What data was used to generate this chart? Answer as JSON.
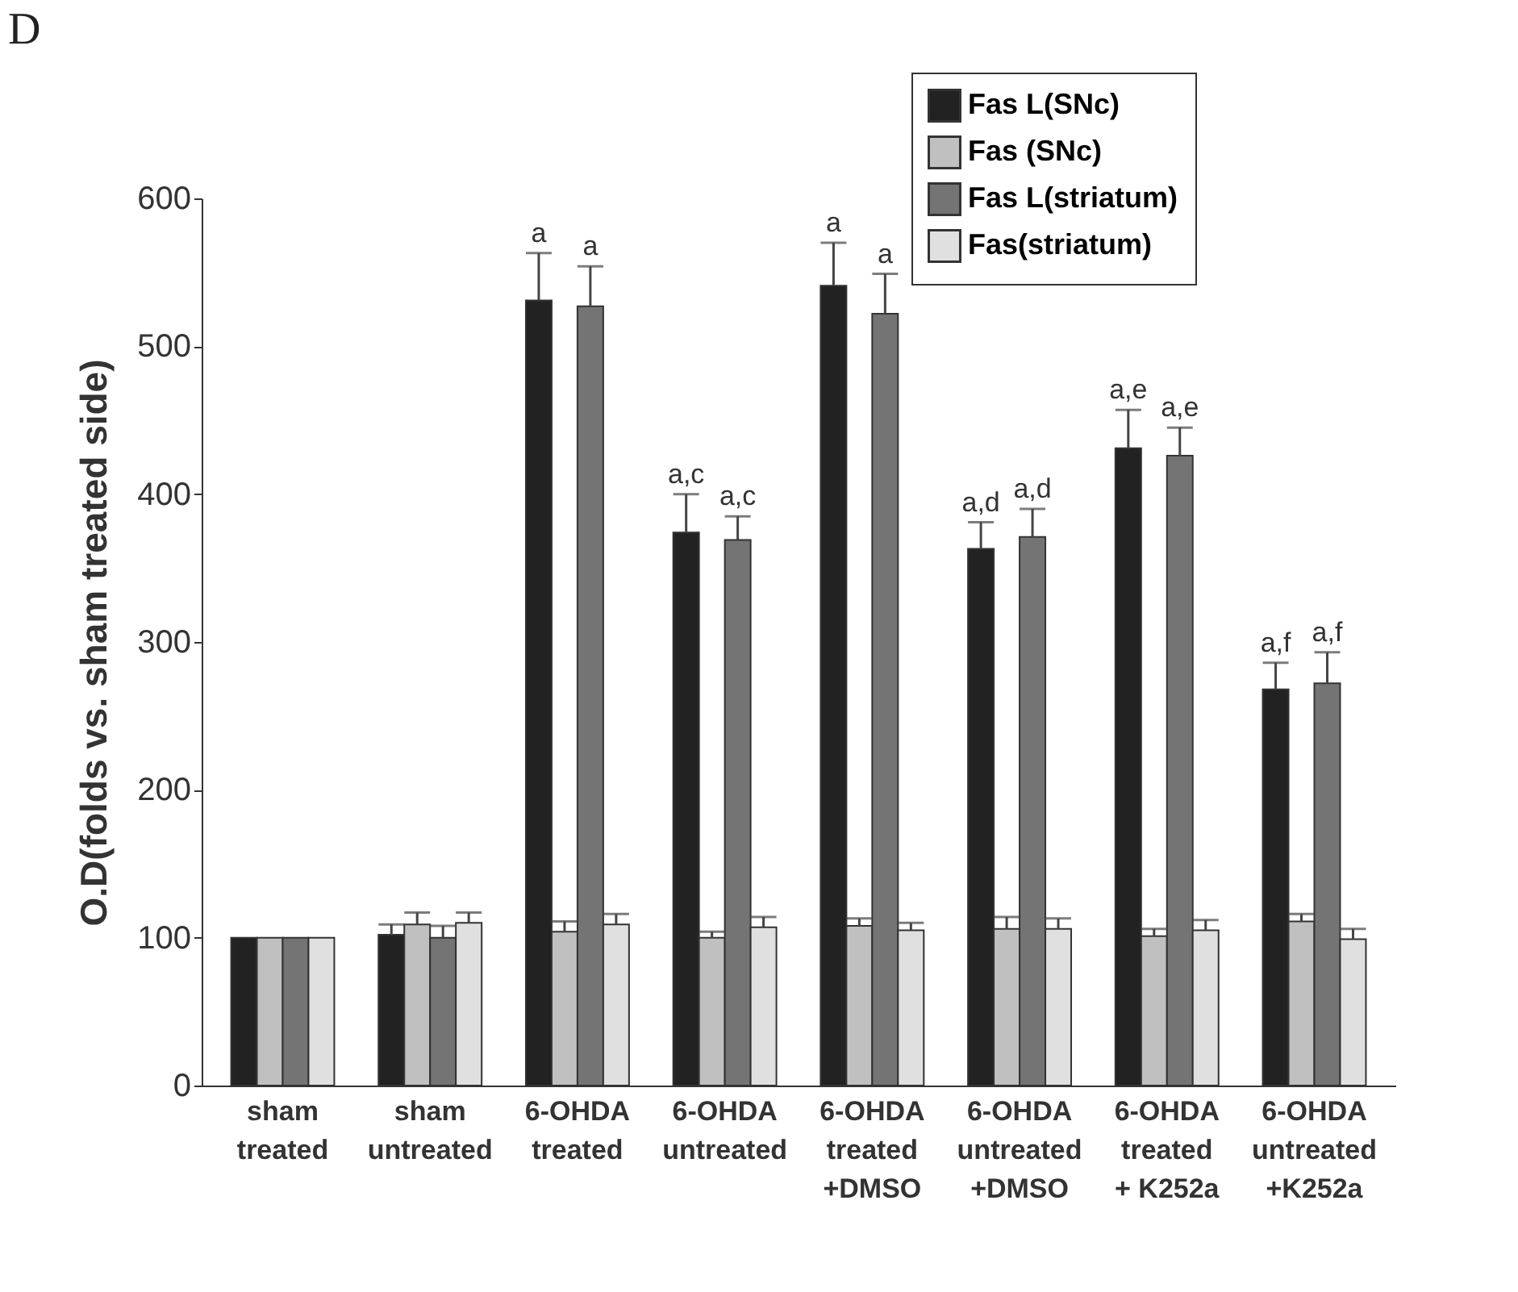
{
  "chart_data": {
    "type": "bar",
    "ylabel": "O.D(folds vs. sham treated side)",
    "annotations": [
      "D"
    ],
    "categories": [
      "sham\ntreated",
      "sham\nuntreated",
      "6-OHDA\ntreated",
      "6-OHDA\nuntreated",
      "6-OHDA\ntreated\n+DMSO",
      "6-OHDA\nuntreated\n+DMSO",
      "6-OHDA\ntreated\n+ K252a",
      "6-OHDA\nuntreated\n+K252a"
    ],
    "series": [
      {
        "name": "Fas L(SNc)",
        "color": "#222222",
        "values": [
          100,
          102,
          531,
          374,
          541,
          363,
          431,
          268
        ],
        "errors": [
          null,
          [
            102,
            109
          ],
          [
            531,
            563
          ],
          [
            374,
            400
          ],
          [
            541,
            570
          ],
          [
            363,
            381
          ],
          [
            431,
            457
          ],
          [
            268,
            286
          ]
        ],
        "value_labels": [
          null,
          null,
          "a",
          "a,c",
          "a",
          "a,d",
          "a,e",
          "a,f"
        ]
      },
      {
        "name": "Fas (SNc)",
        "color": "#c0c0c0",
        "values": [
          100,
          109,
          104,
          100,
          108,
          106,
          101,
          111
        ],
        "errors": [
          null,
          [
            109,
            117
          ],
          [
            104,
            111
          ],
          [
            100,
            104
          ],
          [
            108,
            113
          ],
          [
            106,
            114
          ],
          [
            101,
            106
          ],
          [
            111,
            116
          ]
        ]
      },
      {
        "name": "Fas L(striatum)",
        "color": "#747474",
        "values": [
          100,
          100,
          527,
          369,
          522,
          371,
          426,
          272
        ],
        "errors": [
          null,
          [
            100,
            108
          ],
          [
            527,
            554
          ],
          [
            369,
            385
          ],
          [
            522,
            549
          ],
          [
            371,
            390
          ],
          [
            426,
            445
          ],
          [
            272,
            293
          ]
        ],
        "value_labels": [
          null,
          null,
          "a",
          "a,c",
          "a",
          "a,d",
          "a,e",
          "a,f"
        ]
      },
      {
        "name": "Fas(striatum)",
        "color": "#e0e0e0",
        "values": [
          100,
          110,
          109,
          107,
          105,
          106,
          105,
          99
        ],
        "errors": [
          null,
          [
            110,
            117
          ],
          [
            109,
            116
          ],
          [
            107,
            114
          ],
          [
            105,
            110
          ],
          [
            106,
            113
          ],
          [
            105,
            112
          ],
          [
            99,
            106
          ]
        ]
      }
    ],
    "ylim": [
      0,
      600
    ],
    "yticks": [
      0,
      100,
      200,
      300,
      400,
      500,
      600
    ],
    "grid": false,
    "legend": "top right"
  }
}
